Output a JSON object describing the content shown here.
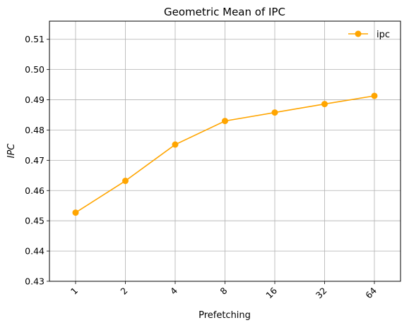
{
  "chart_data": {
    "type": "line",
    "title": "Geometric Mean of IPC",
    "xlabel": "Prefetching",
    "ylabel": "IPC",
    "categories": [
      "1",
      "2",
      "4",
      "8",
      "16",
      "32",
      "64"
    ],
    "series": [
      {
        "name": "ipc",
        "values": [
          0.4527,
          0.4632,
          0.4752,
          0.483,
          0.4858,
          0.4886,
          0.4913
        ],
        "color": "#FFA500",
        "marker": "circle"
      }
    ],
    "ylim": [
      0.43,
      0.516
    ],
    "yticks": [
      "0.43",
      "0.44",
      "0.45",
      "0.46",
      "0.47",
      "0.48",
      "0.49",
      "0.50",
      "0.51"
    ],
    "grid": true,
    "legend": "upper right",
    "x_tick_rotation": 45
  }
}
